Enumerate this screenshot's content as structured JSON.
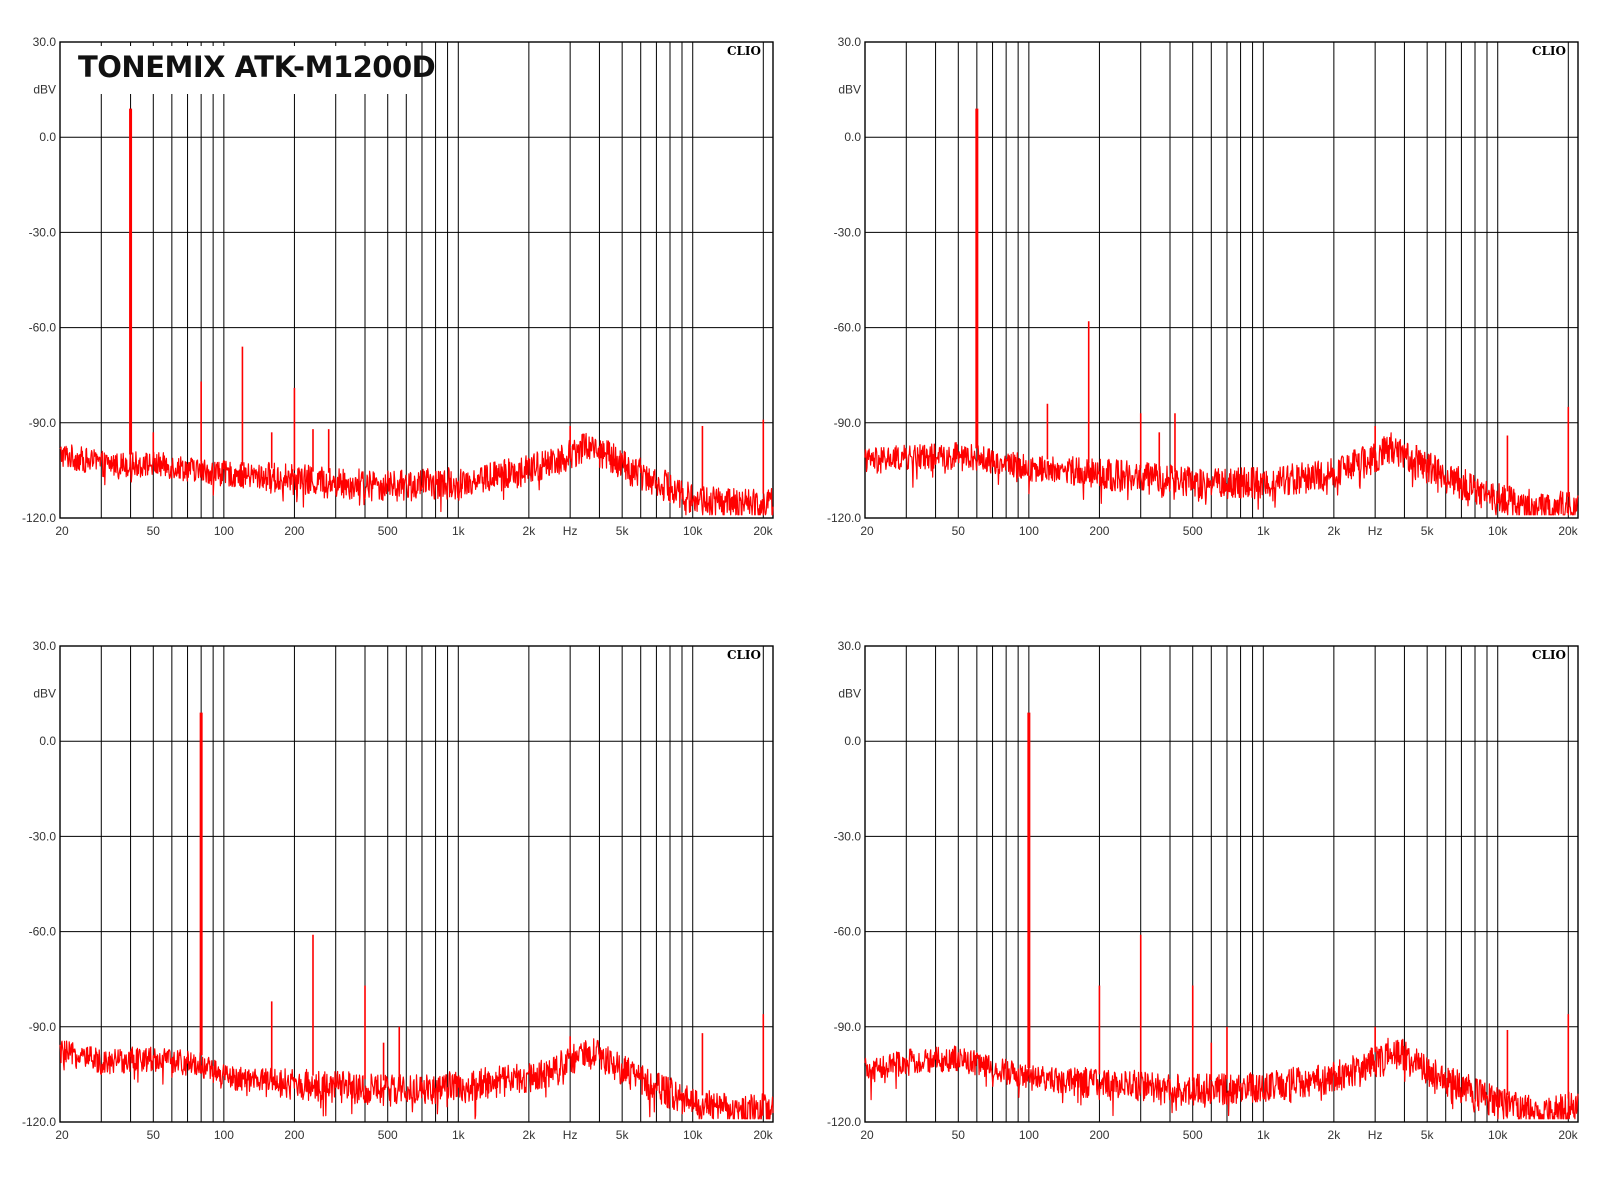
{
  "title": "TONEMIX ATK-M1200D",
  "colors": {
    "trace": "#ff0000",
    "grid": "#000000",
    "background": "#ffffff",
    "text": "#333333"
  },
  "chart_data": [
    {
      "type": "line",
      "brand": "CLIO",
      "ylabel": "dBV",
      "xlabel": "Hz",
      "x_scale": "log",
      "xlim": [
        20,
        22000
      ],
      "ylim": [
        -120,
        30
      ],
      "y_ticks": [
        "30.0",
        "0.0",
        "-30.0",
        "-60.0",
        "-90.0",
        "-120.0"
      ],
      "x_ticks": [
        "20",
        "50",
        "100",
        "200",
        "500",
        "1k",
        "2k",
        "Hz",
        "5k",
        "10k",
        "20k"
      ],
      "grid": true,
      "noise_floor": [
        [
          20,
          -100
        ],
        [
          30,
          -103
        ],
        [
          50,
          -103
        ],
        [
          100,
          -106
        ],
        [
          200,
          -108
        ],
        [
          500,
          -110
        ],
        [
          1000,
          -109
        ],
        [
          2000,
          -105
        ],
        [
          3000,
          -100
        ],
        [
          3500,
          -97
        ],
        [
          4000,
          -99
        ],
        [
          6000,
          -106
        ],
        [
          10000,
          -114
        ],
        [
          16000,
          -116
        ],
        [
          22000,
          -115
        ]
      ],
      "peaks": [
        [
          40,
          9
        ],
        [
          50,
          -93
        ],
        [
          80,
          -77
        ],
        [
          120,
          -66
        ],
        [
          160,
          -93
        ],
        [
          200,
          -79
        ],
        [
          240,
          -92
        ],
        [
          280,
          -92
        ],
        [
          3000,
          -91
        ],
        [
          11000,
          -91
        ],
        [
          20000,
          -89
        ]
      ]
    },
    {
      "type": "line",
      "brand": "CLIO",
      "ylabel": "dBV",
      "xlabel": "Hz",
      "x_scale": "log",
      "xlim": [
        20,
        22000
      ],
      "ylim": [
        -120,
        30
      ],
      "y_ticks": [
        "30.0",
        "0.0",
        "-30.0",
        "-60.0",
        "-90.0",
        "-120.0"
      ],
      "x_ticks": [
        "20",
        "50",
        "100",
        "200",
        "500",
        "1k",
        "2k",
        "Hz",
        "5k",
        "10k",
        "20k"
      ],
      "grid": true,
      "noise_floor": [
        [
          20,
          -102
        ],
        [
          30,
          -101
        ],
        [
          50,
          -100
        ],
        [
          100,
          -104
        ],
        [
          200,
          -106
        ],
        [
          500,
          -109
        ],
        [
          1000,
          -109
        ],
        [
          2000,
          -106
        ],
        [
          3000,
          -101
        ],
        [
          3500,
          -98
        ],
        [
          4000,
          -100
        ],
        [
          6000,
          -107
        ],
        [
          10000,
          -114
        ],
        [
          16000,
          -117
        ],
        [
          22000,
          -116
        ]
      ],
      "peaks": [
        [
          60,
          9
        ],
        [
          120,
          -84
        ],
        [
          180,
          -58
        ],
        [
          300,
          -87
        ],
        [
          360,
          -93
        ],
        [
          420,
          -87
        ],
        [
          3000,
          -91
        ],
        [
          4500,
          -97
        ],
        [
          11000,
          -94
        ],
        [
          20000,
          -85
        ]
      ]
    },
    {
      "type": "line",
      "brand": "CLIO",
      "ylabel": "dBV",
      "xlabel": "Hz",
      "x_scale": "log",
      "xlim": [
        20,
        22000
      ],
      "ylim": [
        -120,
        30
      ],
      "y_ticks": [
        "30.0",
        "0.0",
        "-30.0",
        "-60.0",
        "-90.0",
        "-120.0"
      ],
      "x_ticks": [
        "20",
        "50",
        "100",
        "200",
        "500",
        "1k",
        "2k",
        "Hz",
        "5k",
        "10k",
        "20k"
      ],
      "grid": true,
      "noise_floor": [
        [
          20,
          -98
        ],
        [
          30,
          -101
        ],
        [
          50,
          -100
        ],
        [
          80,
          -102
        ],
        [
          100,
          -106
        ],
        [
          200,
          -108
        ],
        [
          500,
          -110
        ],
        [
          1000,
          -109
        ],
        [
          2000,
          -106
        ],
        [
          3000,
          -101
        ],
        [
          3500,
          -98
        ],
        [
          4000,
          -99
        ],
        [
          6000,
          -107
        ],
        [
          10000,
          -114
        ],
        [
          16000,
          -117
        ],
        [
          22000,
          -115
        ]
      ],
      "peaks": [
        [
          80,
          9
        ],
        [
          160,
          -82
        ],
        [
          240,
          -61
        ],
        [
          400,
          -77
        ],
        [
          480,
          -95
        ],
        [
          560,
          -90
        ],
        [
          3000,
          -93
        ],
        [
          11000,
          -92
        ],
        [
          20000,
          -86
        ]
      ]
    },
    {
      "type": "line",
      "brand": "CLIO",
      "ylabel": "dBV",
      "xlabel": "Hz",
      "x_scale": "log",
      "xlim": [
        20,
        22000
      ],
      "ylim": [
        -120,
        30
      ],
      "y_ticks": [
        "30.0",
        "0.0",
        "-30.0",
        "-60.0",
        "-90.0",
        "-120.0"
      ],
      "x_ticks": [
        "20",
        "50",
        "100",
        "200",
        "500",
        "1k",
        "2k",
        "Hz",
        "5k",
        "10k",
        "20k"
      ],
      "grid": true,
      "noise_floor": [
        [
          20,
          -104
        ],
        [
          30,
          -101
        ],
        [
          50,
          -100
        ],
        [
          100,
          -106
        ],
        [
          200,
          -108
        ],
        [
          500,
          -110
        ],
        [
          1000,
          -109
        ],
        [
          2000,
          -106
        ],
        [
          3000,
          -101
        ],
        [
          3500,
          -98
        ],
        [
          4000,
          -99
        ],
        [
          6000,
          -107
        ],
        [
          10000,
          -114
        ],
        [
          16000,
          -117
        ],
        [
          22000,
          -115
        ]
      ],
      "peaks": [
        [
          100,
          9
        ],
        [
          200,
          -77
        ],
        [
          300,
          -61
        ],
        [
          500,
          -77
        ],
        [
          600,
          -95
        ],
        [
          700,
          -90
        ],
        [
          3000,
          -90
        ],
        [
          11000,
          -91
        ],
        [
          20000,
          -86
        ]
      ]
    }
  ]
}
